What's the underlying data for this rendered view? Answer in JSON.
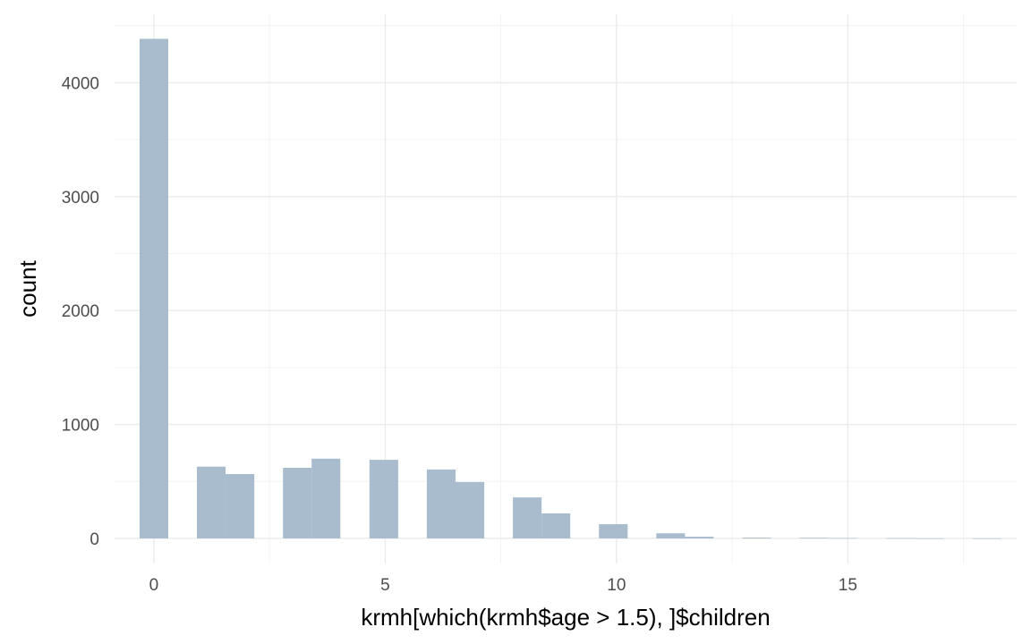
{
  "chart_data": {
    "type": "bar",
    "subtype": "histogram",
    "xlabel": "krmh[which(krmh$age > 1.5), ]$children",
    "ylabel": "count",
    "xlim": [
      -0.85,
      18.65
    ],
    "ylim": [
      -220,
      4600
    ],
    "x_ticks": [
      0,
      5,
      10,
      15
    ],
    "x_tick_labels": [
      "0",
      "5",
      "10",
      "15"
    ],
    "y_ticks": [
      0,
      1000,
      2000,
      3000,
      4000
    ],
    "y_tick_labels": [
      "0",
      "1000",
      "2000",
      "3000",
      "4000"
    ],
    "bin_width": 0.6207,
    "bins": [
      {
        "x_start": -0.31,
        "count": 4385
      },
      {
        "x_start": 0.93,
        "count": 630
      },
      {
        "x_start": 1.55,
        "count": 565
      },
      {
        "x_start": 2.79,
        "count": 620
      },
      {
        "x_start": 3.41,
        "count": 700
      },
      {
        "x_start": 4.66,
        "count": 690
      },
      {
        "x_start": 5.9,
        "count": 605
      },
      {
        "x_start": 6.52,
        "count": 495
      },
      {
        "x_start": 7.76,
        "count": 360
      },
      {
        "x_start": 8.38,
        "count": 220
      },
      {
        "x_start": 9.62,
        "count": 125
      },
      {
        "x_start": 10.86,
        "count": 45
      },
      {
        "x_start": 11.48,
        "count": 15
      },
      {
        "x_start": 12.72,
        "count": 7
      },
      {
        "x_start": 13.96,
        "count": 6
      },
      {
        "x_start": 14.59,
        "count": 3
      },
      {
        "x_start": 15.83,
        "count": 2
      },
      {
        "x_start": 16.45,
        "count": 1
      },
      {
        "x_start": 17.69,
        "count": 1
      }
    ],
    "bar_color": "#a9bcce",
    "grid": true,
    "legend": "none"
  }
}
